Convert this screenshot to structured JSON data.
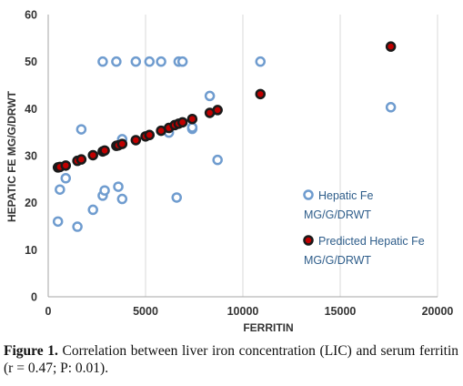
{
  "chart_data": {
    "type": "scatter",
    "title": "",
    "xlabel": "FERRITIN",
    "ylabel": "HEPATIC FE MG/G/DRWT",
    "xlim": [
      0,
      20000
    ],
    "ylim": [
      0,
      60
    ],
    "x_ticks": [
      "0",
      "5000",
      "10000",
      "15000",
      "20000"
    ],
    "y_ticks": [
      "0",
      "10",
      "20",
      "30",
      "40",
      "50",
      "60"
    ],
    "grid": "vertical",
    "legend_position": "right",
    "series": [
      {
        "name": "Hepatic Fe MG/G/DRWT",
        "color": "#6f9ccf",
        "marker": "open-circle",
        "points": [
          [
            500,
            16
          ],
          [
            600,
            22.8
          ],
          [
            900,
            25.2
          ],
          [
            1500,
            14.9
          ],
          [
            1700,
            35.6
          ],
          [
            2300,
            18.5
          ],
          [
            2800,
            50
          ],
          [
            2800,
            21.5
          ],
          [
            2900,
            22.6
          ],
          [
            3500,
            50
          ],
          [
            3600,
            23.4
          ],
          [
            3800,
            20.8
          ],
          [
            3800,
            33.5
          ],
          [
            4500,
            50
          ],
          [
            5200,
            50
          ],
          [
            5800,
            50
          ],
          [
            6200,
            34.9
          ],
          [
            6600,
            21.1
          ],
          [
            6700,
            50
          ],
          [
            6900,
            50
          ],
          [
            7400,
            35.7
          ],
          [
            7400,
            36
          ],
          [
            8300,
            42.7
          ],
          [
            8700,
            29.1
          ],
          [
            10900,
            50
          ],
          [
            17600,
            40.3
          ]
        ]
      },
      {
        "name": "Predicted Hepatic Fe MG/G/DRWT",
        "color": "#c00000",
        "marker": "filled-circle-dark-ring",
        "points": [
          [
            500,
            27.5
          ],
          [
            600,
            27.6
          ],
          [
            900,
            27.9
          ],
          [
            1500,
            28.9
          ],
          [
            1700,
            29.2
          ],
          [
            2300,
            30.1
          ],
          [
            2800,
            30.9
          ],
          [
            2900,
            31.1
          ],
          [
            3500,
            32.1
          ],
          [
            3600,
            32.2
          ],
          [
            3800,
            32.5
          ],
          [
            4500,
            33.3
          ],
          [
            5000,
            34.1
          ],
          [
            5200,
            34.4
          ],
          [
            5800,
            35.3
          ],
          [
            6200,
            35.9
          ],
          [
            6500,
            36.5
          ],
          [
            6700,
            36.8
          ],
          [
            6900,
            37.1
          ],
          [
            7400,
            37.8
          ],
          [
            8300,
            39.1
          ],
          [
            8700,
            39.7
          ],
          [
            10900,
            43.1
          ],
          [
            17600,
            53.2
          ]
        ]
      }
    ]
  },
  "legend": {
    "items": [
      {
        "line1": "Hepatic Fe",
        "line2": "MG/G/DRWT"
      },
      {
        "line1": "Predicted Hepatic Fe",
        "line2": "MG/G/DRWT"
      }
    ]
  },
  "caption": {
    "label": "Figure 1.",
    "text": "Correlation between liver iron concentration (LIC) and serum ferritin (r = 0.47; P: 0.01)."
  }
}
